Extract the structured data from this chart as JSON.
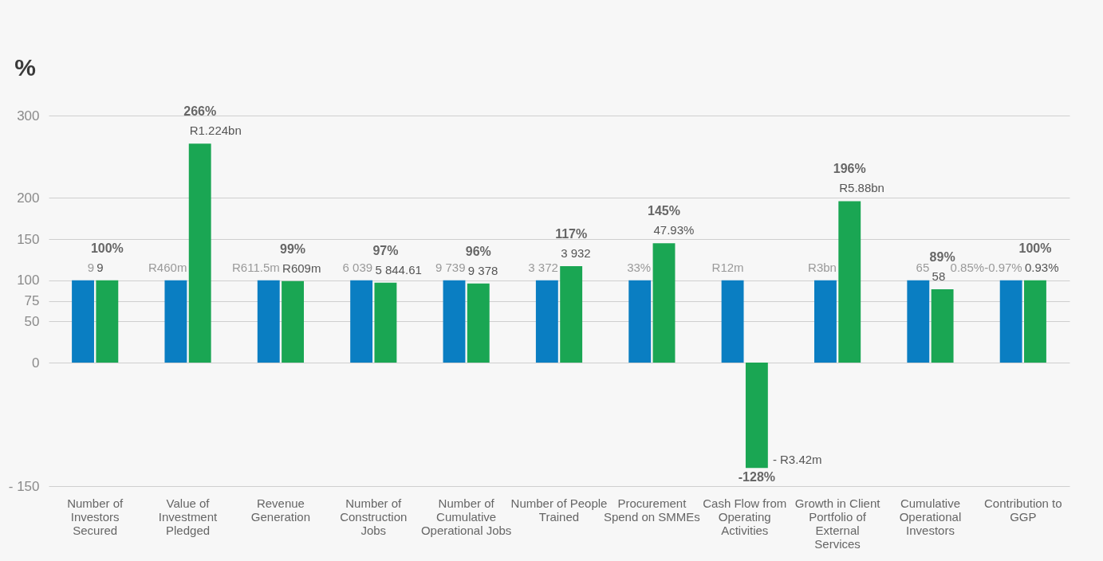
{
  "chart_data": {
    "type": "bar",
    "ylabel": "%",
    "categories": [
      "Number of Investors Secured",
      "Value of Investment Pledged",
      "Revenue Generation",
      "Number of Construction Jobs",
      "Number of Cumulative Operational Jobs",
      "Number of People Trained",
      "Procurement Spend on SMMEs",
      "Cash Flow from Operating Activities",
      "Growth in Client Portfolio of External Services",
      "Cumulative Operational Investors",
      "Contribution to GGP"
    ],
    "series": [
      {
        "color": "#0a7ec2",
        "values": [
          100,
          100,
          100,
          100,
          100,
          100,
          100,
          100,
          100,
          100,
          100
        ]
      },
      {
        "color": "#1aa653",
        "values": [
          100,
          266,
          99,
          97,
          96,
          117,
          145,
          -128,
          196,
          89,
          100
        ],
        "value_labels": [
          "100%",
          "266%",
          "99%",
          "97%",
          "96%",
          "117%",
          "145%",
          "-128%",
          "196%",
          "89%",
          "100%"
        ]
      }
    ],
    "annotations": [
      {
        "text": "9",
        "x": "Number of Investors Secured",
        "y": 100
      },
      {
        "text": "9",
        "x": "Number of Investors Secured",
        "y": 100
      },
      {
        "text": "R460m",
        "x": "Value of Investment Pledged",
        "y": 100
      },
      {
        "text": "R1.224bn",
        "x": "Value of Investment Pledged",
        "y": 266
      },
      {
        "text": "R611.5m",
        "x": "Revenue Generation",
        "y": 100
      },
      {
        "text": "R609m",
        "x": "Revenue Generation",
        "y": 99
      },
      {
        "text": "6 039",
        "x": "Number of Construction Jobs",
        "y": 100
      },
      {
        "text": "5 844.61",
        "x": "Number of Construction Jobs",
        "y": 97
      },
      {
        "text": "9 739",
        "x": "Number of Cumulative Operational Jobs",
        "y": 100
      },
      {
        "text": "9 378",
        "x": "Number of Cumulative Operational Jobs",
        "y": 96
      },
      {
        "text": "3 372",
        "x": "Number of People Trained",
        "y": 100
      },
      {
        "text": "3 932",
        "x": "Number of People Trained",
        "y": 117
      },
      {
        "text": "33%",
        "x": "Procurement Spend on SMMEs",
        "y": 100
      },
      {
        "text": "47.93%",
        "x": "Procurement Spend on SMMEs",
        "y": 145
      },
      {
        "text": "R12m",
        "x": "Cash Flow from Operating Activities",
        "y": 100
      },
      {
        "text": "- R3.42m",
        "x": "Cash Flow from Operating Activities",
        "y": -128
      },
      {
        "text": "R3bn",
        "x": "Growth in Client Portfolio of External Services",
        "y": 100
      },
      {
        "text": "R5.88bn",
        "x": "Growth in Client Portfolio of External Services",
        "y": 196
      },
      {
        "text": "65",
        "x": "Cumulative Operational Investors",
        "y": 100
      },
      {
        "text": "58",
        "x": "Cumulative Operational Investors",
        "y": 89
      },
      {
        "text": "0.85%-0.97%",
        "x": "Contribution to GGP",
        "y": 100
      },
      {
        "text": "0.93%",
        "x": "Contribution to GGP",
        "y": 100
      }
    ],
    "ylim": [
      -150,
      300
    ],
    "yticks": [
      {
        "value": -150,
        "label": "- 150"
      },
      0,
      50,
      75,
      100,
      150,
      200,
      300
    ],
    "grid": "y"
  }
}
